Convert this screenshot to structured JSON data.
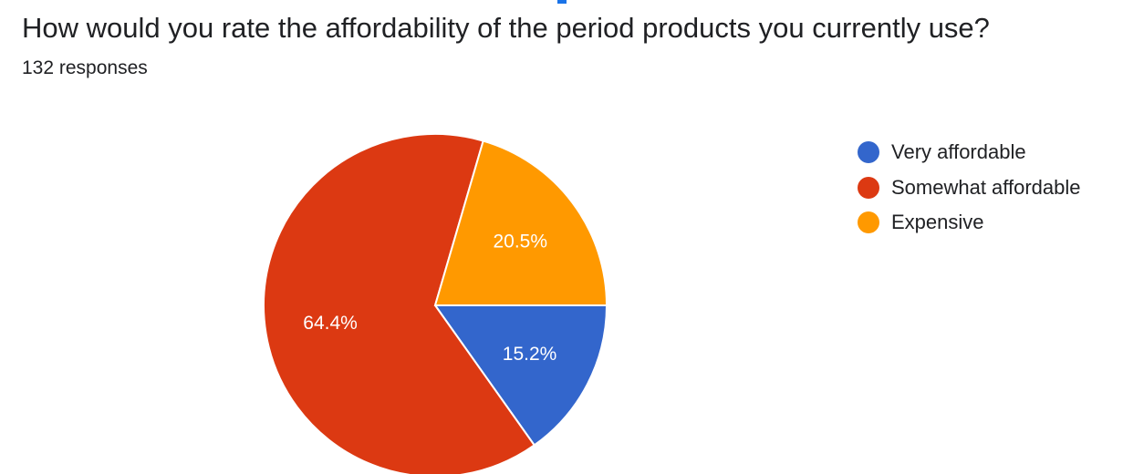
{
  "question": {
    "title": "How would you rate the affordability of the period products you currently use?",
    "responses": "132 responses"
  },
  "colors": {
    "accent": "#1a73e8"
  },
  "chart_data": {
    "type": "pie",
    "title": "How would you rate the affordability of the period products you currently use?",
    "total_responses": 132,
    "legend_position": "right",
    "slices": [
      {
        "label": "Very affordable",
        "value": 15.2,
        "display": "15.2%",
        "color": "#3366cc"
      },
      {
        "label": "Somewhat affordable",
        "value": 64.4,
        "display": "64.4%",
        "color": "#dc3912"
      },
      {
        "label": "Expensive",
        "value": 20.5,
        "display": "20.5%",
        "color": "#ff9900"
      }
    ]
  }
}
